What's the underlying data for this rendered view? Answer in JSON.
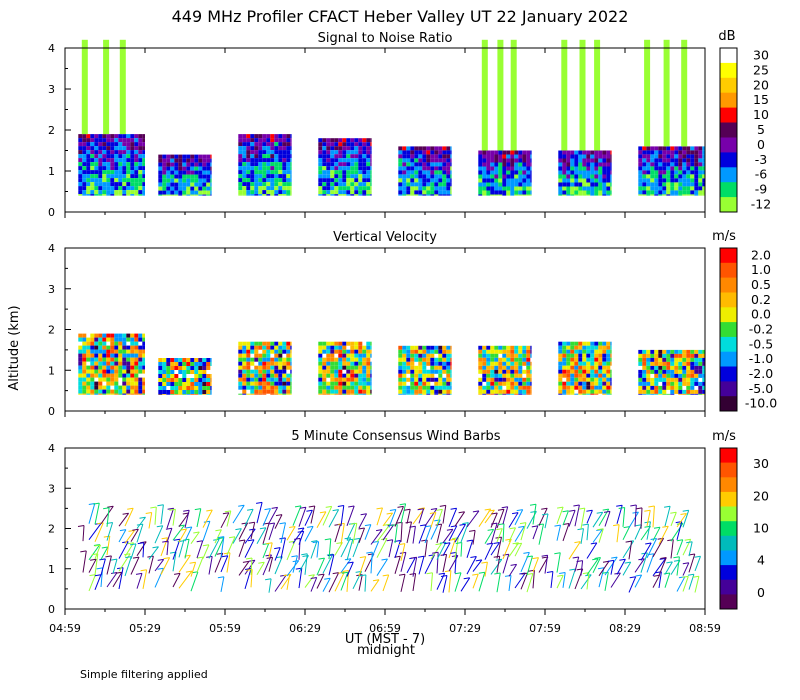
{
  "title": "449 MHz Profiler CFACT Heber Valley UT 22 January 2022",
  "ylabel": "Altitude (km)",
  "xlabel": "UT (MST - 7)",
  "xlabel2": "midnight",
  "footnote": "Simple filtering applied",
  "x_ticks": [
    "04:59",
    "05:29",
    "05:59",
    "06:29",
    "06:59",
    "07:29",
    "07:59",
    "08:29",
    "08:59"
  ],
  "y_ticks": [
    "0",
    "1",
    "2",
    "3",
    "4"
  ],
  "chart_data": [
    {
      "type": "heatmap",
      "title": "Signal to Noise Ratio",
      "unit": "dB",
      "ylim": [
        0,
        4
      ],
      "colorbar_labels": [
        "30",
        "25",
        "20",
        "15",
        "10",
        "5",
        "0",
        "-3",
        "-6",
        "-9",
        "-12"
      ],
      "colors": [
        "#ffffff",
        "#ffff00",
        "#ffcc00",
        "#ff9900",
        "#ff0000",
        "#550055",
        "#7700aa",
        "#0000dd",
        "#0099ff",
        "#00dd66",
        "#99ff33"
      ],
      "blocks": [
        {
          "start": "05:04",
          "end": "05:29",
          "top_km": 1.9,
          "tower_km": 4.2
        },
        {
          "start": "05:34",
          "end": "05:54",
          "top_km": 1.4,
          "tower_km": 0
        },
        {
          "start": "06:04",
          "end": "06:24",
          "top_km": 1.9,
          "tower_km": 0
        },
        {
          "start": "06:34",
          "end": "06:54",
          "top_km": 1.8,
          "tower_km": 0
        },
        {
          "start": "07:04",
          "end": "07:24",
          "top_km": 1.6,
          "tower_km": 0
        },
        {
          "start": "07:34",
          "end": "07:54",
          "top_km": 1.5,
          "tower_km": 4.2
        },
        {
          "start": "08:04",
          "end": "08:24",
          "top_km": 1.5,
          "tower_km": 4.2
        },
        {
          "start": "08:34",
          "end": "08:59",
          "top_km": 1.6,
          "tower_km": 4.2
        }
      ]
    },
    {
      "type": "heatmap",
      "title": "Vertical Velocity",
      "unit": "m/s",
      "ylim": [
        0,
        4
      ],
      "colorbar_labels": [
        "2.0",
        "1.0",
        "0.5",
        "0.2",
        "0.0",
        "-0.2",
        "-0.5",
        "-1.0",
        "-2.0",
        "-5.0",
        "-10.0"
      ],
      "colors": [
        "#ff0000",
        "#ff5500",
        "#ff8800",
        "#ffbb00",
        "#eeee00",
        "#33dd33",
        "#00dddd",
        "#0099ff",
        "#0000dd",
        "#440099",
        "#330033"
      ],
      "blocks": [
        {
          "start": "05:04",
          "end": "05:29",
          "top_km": 1.9
        },
        {
          "start": "05:34",
          "end": "05:54",
          "top_km": 1.3
        },
        {
          "start": "06:04",
          "end": "06:24",
          "top_km": 1.7
        },
        {
          "start": "06:34",
          "end": "06:54",
          "top_km": 1.7
        },
        {
          "start": "07:04",
          "end": "07:24",
          "top_km": 1.6
        },
        {
          "start": "07:34",
          "end": "07:54",
          "top_km": 1.6
        },
        {
          "start": "08:04",
          "end": "08:24",
          "top_km": 1.7
        },
        {
          "start": "08:34",
          "end": "08:59",
          "top_km": 1.5
        }
      ]
    },
    {
      "type": "wind_barbs",
      "title": "5 Minute Consensus Wind Barbs",
      "unit": "m/s",
      "ylim": [
        0,
        4
      ],
      "colorbar_labels": [
        "30",
        "20",
        "10",
        "4",
        "0"
      ],
      "colors": [
        "#ff0000",
        "#ff5500",
        "#ff8800",
        "#ffcc00",
        "#99ff33",
        "#00dd66",
        "#00bbbb",
        "#0099ff",
        "#0000dd",
        "#440099",
        "#550055"
      ],
      "bottom_km": 0.4,
      "top_km": 2.1
    }
  ]
}
